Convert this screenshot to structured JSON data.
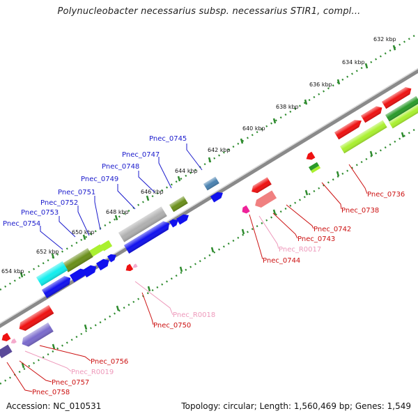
{
  "title": "Polynucleobacter necessarius subsp. necessarius STIR1, compl...",
  "footer": {
    "accession": "Accession: NC_010531",
    "summary": "Topology: circular; Length: 1,560,469 bp; Genes: 1,549"
  },
  "ticks": [
    "632 kbp",
    "634 kbp",
    "636 kbp",
    "638 kbp",
    "640 kbp",
    "642 kbp",
    "644 kbp",
    "646 kbp",
    "648 kbp",
    "650 kbp",
    "652 kbp",
    "654 kbp"
  ],
  "gene_labels": {
    "blue": [
      "Pnec_0745",
      "Pnec_0747",
      "Pnec_0748",
      "Pnec_0749",
      "Pnec_0751",
      "Pnec_0752",
      "Pnec_0753",
      "Pnec_0754"
    ],
    "red": [
      "Pnec_0736",
      "Pnec_0738",
      "Pnec_0742",
      "Pnec_0743",
      "Pnec_R0017",
      "Pnec_0744",
      "Pnec_R0018",
      "Pnec_0750",
      "Pnec_0756",
      "Pnec_R0019",
      "Pnec_0757",
      "Pnec_0758"
    ]
  },
  "colors": {
    "backbone": "#8a8a8a",
    "tick_dots": "#2e8b2e",
    "blue_label": "#1a1acc",
    "red_label": "#cc1111",
    "pink_label": "#ee99bb",
    "cds_red": "#ee1111",
    "cds_blue": "#1111ee",
    "cds_gray": "#b0b0b0",
    "cds_cyan": "#11eeee",
    "cds_olive": "#6a8f1a",
    "cds_lime": "#aaf030",
    "cds_purple": "#7a6acc",
    "cds_steel": "#4a82b0",
    "cds_green": "#2a9a2a",
    "cds_pink": "#ee2299",
    "cds_salmon": "#f08080"
  }
}
